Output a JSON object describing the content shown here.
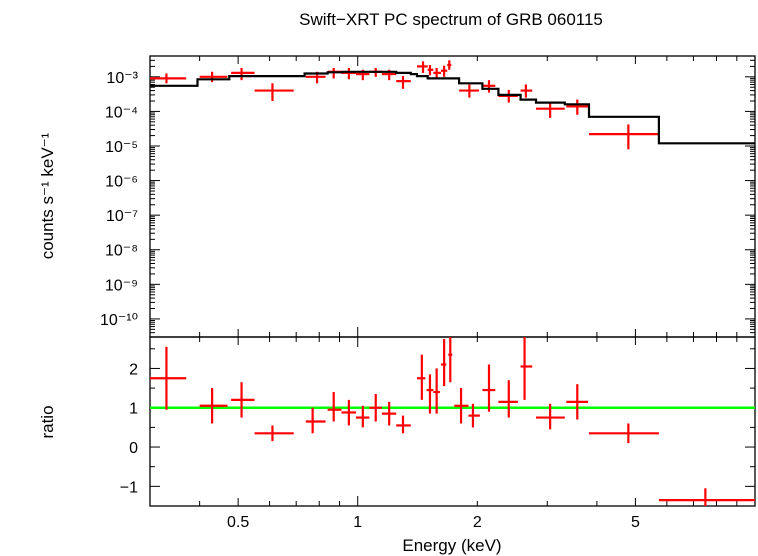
{
  "chart_data": {
    "title": "Swift−XRT PC spectrum of GRB 060115",
    "xlabel": "Energy (keV)",
    "x_scale": "log",
    "xlim": [
      0.3,
      10
    ],
    "x_ticks": [
      {
        "value": 0.5,
        "label": "0.5"
      },
      {
        "value": 1,
        "label": "1"
      },
      {
        "value": 2,
        "label": "2"
      },
      {
        "value": 5,
        "label": "5"
      }
    ],
    "colors": {
      "data": "#ff0000",
      "model": "#000000",
      "unity": "#00ff00"
    },
    "panels": [
      {
        "id": "spectrum",
        "type": "scatter",
        "ylabel": "counts s⁻¹ keV⁻¹",
        "y_scale": "log",
        "ylim": [
          3e-11,
          0.004
        ],
        "y_ticks": [
          {
            "value": 0.001,
            "label": "10⁻³"
          },
          {
            "value": 0.0001,
            "label": "10⁻⁴"
          },
          {
            "value": 1e-05,
            "label": "10⁻⁵"
          },
          {
            "value": 1e-06,
            "label": "10⁻⁶"
          },
          {
            "value": 1e-07,
            "label": "10⁻⁷"
          },
          {
            "value": 1e-08,
            "label": "10⁻⁸"
          },
          {
            "value": 1e-09,
            "label": "10⁻⁹"
          },
          {
            "value": 1e-10,
            "label": "10⁻¹⁰"
          }
        ],
        "series": [
          {
            "kind": "data",
            "points": [
              {
                "x": 0.33,
                "xlo": 0.3,
                "xhi": 0.37,
                "y": 0.0009,
                "ylo": 0.00065,
                "yhi": 0.00125
              },
              {
                "x": 0.43,
                "xlo": 0.4,
                "xhi": 0.47,
                "y": 0.001,
                "ylo": 0.0007,
                "yhi": 0.0014
              },
              {
                "x": 0.51,
                "xlo": 0.48,
                "xhi": 0.55,
                "y": 0.0013,
                "ylo": 0.0008,
                "yhi": 0.0018
              },
              {
                "x": 0.61,
                "xlo": 0.55,
                "xhi": 0.69,
                "y": 0.0004,
                "ylo": 0.0002,
                "yhi": 0.00065
              },
              {
                "x": 0.79,
                "xlo": 0.74,
                "xhi": 0.83,
                "y": 0.001,
                "ylo": 0.00065,
                "yhi": 0.0014
              },
              {
                "x": 0.87,
                "xlo": 0.84,
                "xhi": 0.91,
                "y": 0.0014,
                "ylo": 0.0009,
                "yhi": 0.0018
              },
              {
                "x": 0.95,
                "xlo": 0.91,
                "xhi": 0.99,
                "y": 0.0013,
                "ylo": 0.00085,
                "yhi": 0.0018
              },
              {
                "x": 1.03,
                "xlo": 0.99,
                "xhi": 1.07,
                "y": 0.0012,
                "ylo": 0.0008,
                "yhi": 0.0016
              },
              {
                "x": 1.11,
                "xlo": 1.07,
                "xhi": 1.15,
                "y": 0.0014,
                "ylo": 0.001,
                "yhi": 0.0018
              },
              {
                "x": 1.2,
                "xlo": 1.15,
                "xhi": 1.25,
                "y": 0.0012,
                "ylo": 0.0008,
                "yhi": 0.0016
              },
              {
                "x": 1.3,
                "xlo": 1.25,
                "xhi": 1.36,
                "y": 0.00075,
                "ylo": 0.00045,
                "yhi": 0.00105
              },
              {
                "x": 1.46,
                "xlo": 1.41,
                "xhi": 1.5,
                "y": 0.002,
                "ylo": 0.0013,
                "yhi": 0.0028
              },
              {
                "x": 1.52,
                "xlo": 1.5,
                "xhi": 1.55,
                "y": 0.0016,
                "ylo": 0.0011,
                "yhi": 0.0022
              },
              {
                "x": 1.58,
                "xlo": 1.55,
                "xhi": 1.62,
                "y": 0.0013,
                "ylo": 0.0009,
                "yhi": 0.0018
              },
              {
                "x": 1.65,
                "xlo": 1.62,
                "xhi": 1.68,
                "y": 0.0015,
                "ylo": 0.001,
                "yhi": 0.0021
              },
              {
                "x": 1.7,
                "xlo": 1.68,
                "xhi": 1.72,
                "y": 0.0022,
                "ylo": 0.0016,
                "yhi": 0.003
              },
              {
                "x": 1.91,
                "xlo": 1.8,
                "xhi": 2.02,
                "y": 0.0004,
                "ylo": 0.00025,
                "yhi": 0.0006
              },
              {
                "x": 2.14,
                "xlo": 2.06,
                "xhi": 2.22,
                "y": 0.00055,
                "ylo": 0.00035,
                "yhi": 0.0008
              },
              {
                "x": 2.4,
                "xlo": 2.26,
                "xhi": 2.53,
                "y": 0.00028,
                "ylo": 0.00018,
                "yhi": 0.00042
              },
              {
                "x": 2.65,
                "xlo": 2.57,
                "xhi": 2.75,
                "y": 0.0004,
                "ylo": 0.00025,
                "yhi": 0.0006
              },
              {
                "x": 3.05,
                "xlo": 2.81,
                "xhi": 3.32,
                "y": 0.00012,
                "ylo": 6.5e-05,
                "yhi": 0.00019
              },
              {
                "x": 3.57,
                "xlo": 3.35,
                "xhi": 3.8,
                "y": 0.00014,
                "ylo": 8e-05,
                "yhi": 0.00022
              },
              {
                "x": 4.8,
                "xlo": 3.82,
                "xhi": 5.73,
                "y": 2.2e-05,
                "ylo": 8e-06,
                "yhi": 4.2e-05
              }
            ]
          },
          {
            "kind": "model",
            "step_edges": [
              0.3,
              0.395,
              0.475,
              0.555,
              0.735,
              0.84,
              0.915,
              1.07,
              1.25,
              1.36,
              1.41,
              1.5,
              1.8,
              2.06,
              2.26,
              2.57,
              2.81,
              3.32,
              3.82,
              5.73,
              10
            ],
            "step_values": [
              0.00055,
              0.00085,
              0.00105,
              0.00105,
              0.00125,
              0.00135,
              0.0014,
              0.0014,
              0.0013,
              0.0012,
              0.00105,
              0.0009,
              0.00065,
              0.00045,
              0.0003,
              0.00022,
              0.00018,
              0.00016,
              7e-05,
              1.2e-05
            ]
          }
        ]
      },
      {
        "id": "ratio",
        "type": "scatter",
        "ylabel": "ratio",
        "y_scale": "linear",
        "ylim": [
          -1.5,
          2.8
        ],
        "y_ticks": [
          {
            "value": 2,
            "label": "2"
          },
          {
            "value": 1,
            "label": "1"
          },
          {
            "value": 0,
            "label": "0"
          },
          {
            "value": -1,
            "label": "−1"
          }
        ],
        "reference_line": 1,
        "series": [
          {
            "kind": "data",
            "points": [
              {
                "x": 0.33,
                "xlo": 0.3,
                "xhi": 0.37,
                "y": 1.75,
                "ylo": 0.95,
                "yhi": 2.55
              },
              {
                "x": 0.43,
                "xlo": 0.4,
                "xhi": 0.47,
                "y": 1.05,
                "ylo": 0.6,
                "yhi": 1.5
              },
              {
                "x": 0.51,
                "xlo": 0.48,
                "xhi": 0.55,
                "y": 1.2,
                "ylo": 0.75,
                "yhi": 1.65
              },
              {
                "x": 0.61,
                "xlo": 0.55,
                "xhi": 0.69,
                "y": 0.35,
                "ylo": 0.15,
                "yhi": 0.55
              },
              {
                "x": 0.77,
                "xlo": 0.74,
                "xhi": 0.83,
                "y": 0.65,
                "ylo": 0.35,
                "yhi": 1.0
              },
              {
                "x": 0.87,
                "xlo": 0.84,
                "xhi": 0.91,
                "y": 0.95,
                "ylo": 0.65,
                "yhi": 1.4
              },
              {
                "x": 0.95,
                "xlo": 0.91,
                "xhi": 0.99,
                "y": 0.88,
                "ylo": 0.55,
                "yhi": 1.2
              },
              {
                "x": 1.03,
                "xlo": 0.99,
                "xhi": 1.07,
                "y": 0.75,
                "ylo": 0.5,
                "yhi": 1.05
              },
              {
                "x": 1.11,
                "xlo": 1.07,
                "xhi": 1.15,
                "y": 1.0,
                "ylo": 0.65,
                "yhi": 1.35
              },
              {
                "x": 1.2,
                "xlo": 1.15,
                "xhi": 1.25,
                "y": 0.85,
                "ylo": 0.55,
                "yhi": 1.15
              },
              {
                "x": 1.3,
                "xlo": 1.25,
                "xhi": 1.36,
                "y": 0.55,
                "ylo": 0.35,
                "yhi": 0.8
              },
              {
                "x": 1.45,
                "xlo": 1.41,
                "xhi": 1.48,
                "y": 1.75,
                "ylo": 1.2,
                "yhi": 2.35
              },
              {
                "x": 1.52,
                "xlo": 1.49,
                "xhi": 1.55,
                "y": 1.45,
                "ylo": 0.85,
                "yhi": 1.85
              },
              {
                "x": 1.58,
                "xlo": 1.55,
                "xhi": 1.61,
                "y": 1.4,
                "ylo": 0.85,
                "yhi": 2.0
              },
              {
                "x": 1.65,
                "xlo": 1.62,
                "xhi": 1.67,
                "y": 2.1,
                "ylo": 1.55,
                "yhi": 2.75
              },
              {
                "x": 1.71,
                "xlo": 1.69,
                "xhi": 1.73,
                "y": 2.35,
                "ylo": 1.65,
                "yhi": 2.8
              },
              {
                "x": 1.82,
                "xlo": 1.75,
                "xhi": 1.9,
                "y": 1.05,
                "ylo": 0.6,
                "yhi": 1.5
              },
              {
                "x": 1.95,
                "xlo": 1.9,
                "xhi": 2.03,
                "y": 0.8,
                "ylo": 0.5,
                "yhi": 1.1
              },
              {
                "x": 2.14,
                "xlo": 2.06,
                "xhi": 2.22,
                "y": 1.45,
                "ylo": 0.9,
                "yhi": 2.1
              },
              {
                "x": 2.4,
                "xlo": 2.26,
                "xhi": 2.53,
                "y": 1.15,
                "ylo": 0.75,
                "yhi": 1.7
              },
              {
                "x": 2.63,
                "xlo": 2.57,
                "xhi": 2.75,
                "y": 2.05,
                "ylo": 1.2,
                "yhi": 2.8
              },
              {
                "x": 3.05,
                "xlo": 2.81,
                "xhi": 3.32,
                "y": 0.75,
                "ylo": 0.45,
                "yhi": 1.1
              },
              {
                "x": 3.57,
                "xlo": 3.35,
                "xhi": 3.8,
                "y": 1.15,
                "ylo": 0.7,
                "yhi": 1.6
              },
              {
                "x": 4.8,
                "xlo": 3.82,
                "xhi": 5.73,
                "y": 0.35,
                "ylo": 0.1,
                "yhi": 0.6
              },
              {
                "x": 7.5,
                "xlo": 5.73,
                "xhi": 10.0,
                "y": -1.35,
                "ylo": -1.5,
                "yhi": -1.05
              }
            ]
          }
        ]
      }
    ]
  }
}
